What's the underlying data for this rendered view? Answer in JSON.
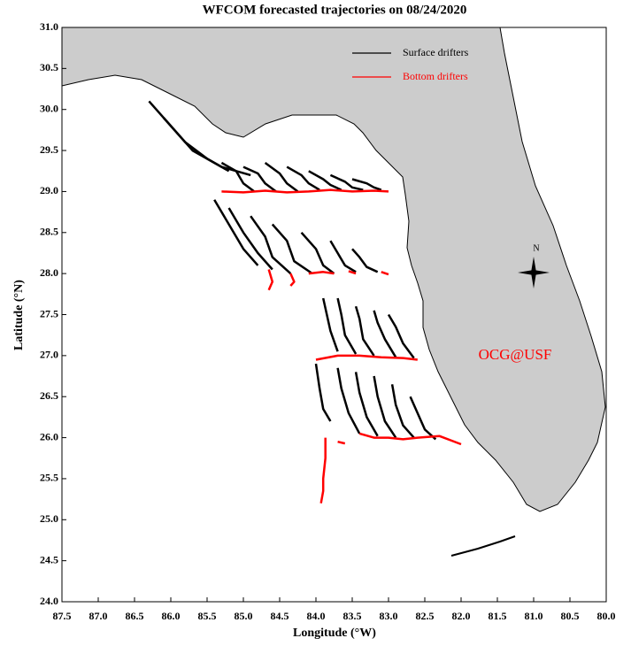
{
  "chart_data": {
    "type": "trajectory-map",
    "title": "WFCOM forecasted trajectories on 08/24/2020",
    "xlabel": "Longitude (°W)",
    "ylabel": "Latitude (°N)",
    "xlim": [
      87.5,
      80.0
    ],
    "ylim": [
      24.0,
      31.0
    ],
    "xticks": [
      87.5,
      {
        "value": 87,
        "label": "87.0"
      },
      86.5,
      {
        "value": 86,
        "label": "86.0"
      },
      85.5,
      {
        "value": 85,
        "label": "85.0"
      },
      84.5,
      {
        "value": 84,
        "label": "84.0"
      },
      83.5,
      {
        "value": 83,
        "label": "83.0"
      },
      82.5,
      {
        "value": 82,
        "label": "82.0"
      },
      81.5,
      {
        "value": 81,
        "label": "81.0"
      },
      80.5,
      {
        "value": 80,
        "label": "80.0"
      }
    ],
    "yticks": [
      {
        "value": 24,
        "label": "24.0"
      },
      24.5,
      {
        "value": 25,
        "label": "25.0"
      },
      25.5,
      {
        "value": 26,
        "label": "26.0"
      },
      26.5,
      {
        "value": 27,
        "label": "27.0"
      },
      27.5,
      {
        "value": 28,
        "label": "28.0"
      },
      28.5,
      {
        "value": 29,
        "label": "29.0"
      },
      29.5,
      {
        "value": 30,
        "label": "30.0"
      },
      30.5,
      {
        "value": 31,
        "label": "31.0"
      }
    ],
    "annotation": "OCG@USF",
    "north_label": "N",
    "series": [
      {
        "name": "Surface drifters",
        "color": "#000000",
        "tracks": [
          {
            "x": [
              86.3,
              86.0,
              85.7,
              85.3,
              84.9
            ],
            "y": [
              30.1,
              29.8,
              29.5,
              29.3,
              29.2
            ]
          },
          {
            "x": [
              86.1,
              85.8,
              85.5,
              85.2
            ],
            "y": [
              29.9,
              29.6,
              29.4,
              29.25
            ]
          },
          {
            "x": [
              85.3,
              85.1,
              85.0,
              84.85
            ],
            "y": [
              29.35,
              29.25,
              29.1,
              29.0
            ]
          },
          {
            "x": [
              85.0,
              84.8,
              84.7,
              84.55
            ],
            "y": [
              29.3,
              29.22,
              29.1,
              29.0
            ]
          },
          {
            "x": [
              84.7,
              84.5,
              84.4,
              84.25
            ],
            "y": [
              29.35,
              29.22,
              29.1,
              29.0
            ]
          },
          {
            "x": [
              84.4,
              84.2,
              84.1,
              83.95
            ],
            "y": [
              29.3,
              29.2,
              29.1,
              29.02
            ]
          },
          {
            "x": [
              84.1,
              83.9,
              83.8,
              83.65
            ],
            "y": [
              29.25,
              29.15,
              29.08,
              29.02
            ]
          },
          {
            "x": [
              83.8,
              83.6,
              83.5,
              83.35
            ],
            "y": [
              29.2,
              29.12,
              29.05,
              29.02
            ]
          },
          {
            "x": [
              83.5,
              83.3,
              83.2,
              83.1
            ],
            "y": [
              29.15,
              29.1,
              29.05,
              29.02
            ]
          },
          {
            "x": [
              85.4,
              85.2,
              85.0,
              84.8
            ],
            "y": [
              28.9,
              28.6,
              28.3,
              28.1
            ]
          },
          {
            "x": [
              85.2,
              85.0,
              84.8,
              84.6
            ],
            "y": [
              28.8,
              28.5,
              28.25,
              28.05
            ]
          },
          {
            "x": [
              84.9,
              84.7,
              84.6,
              84.35
            ],
            "y": [
              28.7,
              28.45,
              28.2,
              28.0
            ]
          },
          {
            "x": [
              84.6,
              84.4,
              84.3,
              84.05
            ],
            "y": [
              28.6,
              28.4,
              28.15,
              28.0
            ]
          },
          {
            "x": [
              84.2,
              84.0,
              83.9,
              83.75
            ],
            "y": [
              28.5,
              28.3,
              28.1,
              28.0
            ]
          },
          {
            "x": [
              83.8,
              83.7,
              83.6,
              83.45
            ],
            "y": [
              28.4,
              28.25,
              28.1,
              28.02
            ]
          },
          {
            "x": [
              83.5,
              83.4,
              83.3,
              83.15
            ],
            "y": [
              28.3,
              28.2,
              28.08,
              28.02
            ]
          },
          {
            "x": [
              83.9,
              83.85,
              83.8,
              83.7
            ],
            "y": [
              27.7,
              27.5,
              27.3,
              27.05
            ]
          },
          {
            "x": [
              83.7,
              83.65,
              83.6,
              83.45
            ],
            "y": [
              27.7,
              27.5,
              27.25,
              27.02
            ]
          },
          {
            "x": [
              83.45,
              83.4,
              83.35,
              83.2
            ],
            "y": [
              27.6,
              27.45,
              27.2,
              27.0
            ]
          },
          {
            "x": [
              83.2,
              83.15,
              83.05,
              82.9
            ],
            "y": [
              27.55,
              27.4,
              27.2,
              26.98
            ]
          },
          {
            "x": [
              83.0,
              82.9,
              82.8,
              82.65
            ],
            "y": [
              27.5,
              27.35,
              27.15,
              26.97
            ]
          },
          {
            "x": [
              84.0,
              83.95,
              83.9,
              83.8
            ],
            "y": [
              26.9,
              26.6,
              26.35,
              26.2
            ]
          },
          {
            "x": [
              83.7,
              83.65,
              83.55,
              83.4
            ],
            "y": [
              26.85,
              26.6,
              26.3,
              26.05
            ]
          },
          {
            "x": [
              83.45,
              83.4,
              83.3,
              83.15
            ],
            "y": [
              26.8,
              26.55,
              26.25,
              26.02
            ]
          },
          {
            "x": [
              83.2,
              83.15,
              83.05,
              82.9
            ],
            "y": [
              26.75,
              26.5,
              26.2,
              26.0
            ]
          },
          {
            "x": [
              82.95,
              82.9,
              82.8,
              82.65
            ],
            "y": [
              26.65,
              26.4,
              26.15,
              26.0
            ]
          },
          {
            "x": [
              82.7,
              82.6,
              82.5,
              82.35
            ],
            "y": [
              26.5,
              26.3,
              26.1,
              25.98
            ]
          }
        ]
      },
      {
        "name": "Bottom drifters",
        "color": "#ff0000",
        "tracks": [
          {
            "x": [
              85.3,
              85.0,
              84.7,
              84.4,
              84.1,
              83.8,
              83.5,
              83.2,
              83.0
            ],
            "y": [
              29.0,
              28.99,
              29.01,
              28.99,
              29.0,
              29.02,
              29.0,
              29.01,
              29.0
            ]
          },
          {
            "x": [
              84.65,
              84.6,
              84.65
            ],
            "y": [
              28.05,
              27.9,
              27.8
            ]
          },
          {
            "x": [
              84.35,
              84.3,
              84.35
            ],
            "y": [
              28.0,
              27.9,
              27.85
            ]
          },
          {
            "x": [
              84.1,
              83.9,
              83.75
            ],
            "y": [
              28.0,
              28.02,
              28.0
            ]
          },
          {
            "x": [
              83.55,
              83.45
            ],
            "y": [
              28.03,
              28.0
            ]
          },
          {
            "x": [
              83.1,
              83.0
            ],
            "y": [
              28.02,
              27.99
            ]
          },
          {
            "x": [
              84.0,
              83.7,
              83.4,
              83.1,
              82.8,
              82.6
            ],
            "y": [
              26.95,
              27.0,
              27.0,
              26.98,
              26.97,
              26.95
            ]
          },
          {
            "x": [
              83.87,
              83.87,
              83.9,
              83.9,
              83.93
            ],
            "y": [
              26.0,
              25.75,
              25.5,
              25.35,
              25.2
            ]
          },
          {
            "x": [
              83.7,
              83.6
            ],
            "y": [
              25.95,
              25.93
            ]
          },
          {
            "x": [
              83.4,
              83.2,
              83.0,
              82.8,
              82.6,
              82.3,
              82.0
            ],
            "y": [
              26.05,
              26.0,
              26.0,
              25.98,
              26.0,
              26.02,
              25.92
            ]
          }
        ]
      }
    ]
  }
}
